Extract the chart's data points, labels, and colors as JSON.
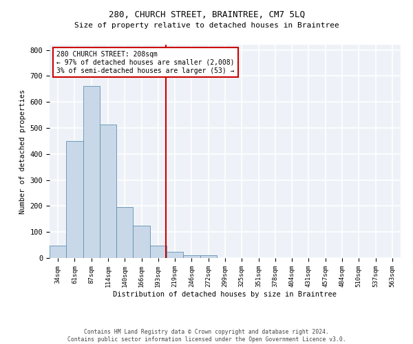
{
  "title": "280, CHURCH STREET, BRAINTREE, CM7 5LQ",
  "subtitle": "Size of property relative to detached houses in Braintree",
  "xlabel": "Distribution of detached houses by size in Braintree",
  "ylabel": "Number of detached properties",
  "bar_color": "#c8d8e8",
  "bar_edge_color": "#6090b0",
  "background_color": "#eef2f8",
  "grid_color": "#ffffff",
  "bin_labels": [
    "34sqm",
    "61sqm",
    "87sqm",
    "114sqm",
    "140sqm",
    "166sqm",
    "193sqm",
    "219sqm",
    "246sqm",
    "272sqm",
    "299sqm",
    "325sqm",
    "351sqm",
    "378sqm",
    "404sqm",
    "431sqm",
    "457sqm",
    "484sqm",
    "510sqm",
    "537sqm",
    "563sqm"
  ],
  "bar_heights": [
    47,
    449,
    662,
    514,
    196,
    125,
    47,
    25,
    10,
    10,
    0,
    0,
    0,
    0,
    0,
    0,
    0,
    0,
    0,
    0,
    0
  ],
  "annotation_line1": "280 CHURCH STREET: 208sqm",
  "annotation_line2": "← 97% of detached houses are smaller (2,008)",
  "annotation_line3": "3% of semi-detached houses are larger (53) →",
  "annotation_box_color": "#ffffff",
  "annotation_box_edge_color": "#cc0000",
  "vline_color": "#cc0000",
  "vline_x": 6.45,
  "ylim": [
    0,
    820
  ],
  "yticks": [
    0,
    100,
    200,
    300,
    400,
    500,
    600,
    700,
    800
  ],
  "footer_line1": "Contains HM Land Registry data © Crown copyright and database right 2024.",
  "footer_line2": "Contains public sector information licensed under the Open Government Licence v3.0."
}
